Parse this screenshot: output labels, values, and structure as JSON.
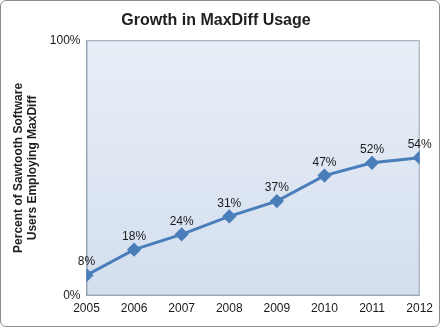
{
  "chart_data": {
    "type": "line",
    "title": "Growth in MaxDiff Usage",
    "ylabel": "Percent of Sawtooth Software Users Employing MaxDiff",
    "categories": [
      "2005",
      "2006",
      "2007",
      "2008",
      "2009",
      "2010",
      "2011",
      "2012"
    ],
    "values": [
      8,
      18,
      24,
      31,
      37,
      47,
      52,
      54
    ],
    "value_labels": [
      "8%",
      "18%",
      "24%",
      "31%",
      "37%",
      "47%",
      "52%",
      "54%"
    ],
    "color": "#4a7ebb",
    "marker": "diamond",
    "ylim": [
      0,
      100
    ],
    "yticks": [
      {
        "value": 0,
        "label": "0%"
      },
      {
        "value": 100,
        "label": "100%"
      }
    ],
    "grid": false,
    "data_labels": true
  }
}
